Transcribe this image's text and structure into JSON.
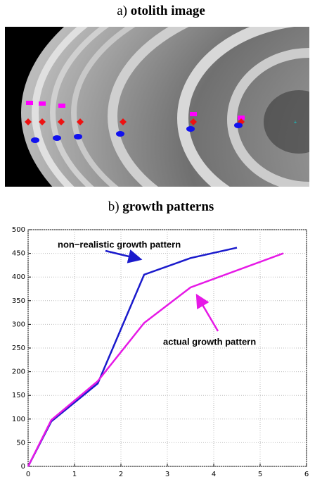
{
  "panel_a": {
    "label": "a)",
    "title": "otolith image"
  },
  "chart_data": {
    "type": "line",
    "panel_label": "b)",
    "title": "growth patterns",
    "xlim": [
      0,
      6
    ],
    "xticks": [
      0,
      1,
      2,
      3,
      4,
      5,
      6
    ],
    "ylim": [
      0,
      500
    ],
    "yticks": [
      0,
      50,
      100,
      150,
      200,
      250,
      300,
      350,
      400,
      450,
      500
    ],
    "grid": true,
    "series": [
      {
        "name": "non−realistic growth pattern",
        "color": "#1a1acc",
        "x": [
          0,
          0.5,
          1.5,
          2.5,
          3.5,
          4.5
        ],
        "values": [
          0,
          95,
          175,
          405,
          440,
          462
        ]
      },
      {
        "name": "actual growth pattern",
        "color": "#e619e6",
        "x": [
          0,
          0.5,
          1.5,
          2.5,
          3.5,
          5.5
        ],
        "values": [
          0,
          98,
          180,
          303,
          378,
          450
        ]
      }
    ]
  }
}
